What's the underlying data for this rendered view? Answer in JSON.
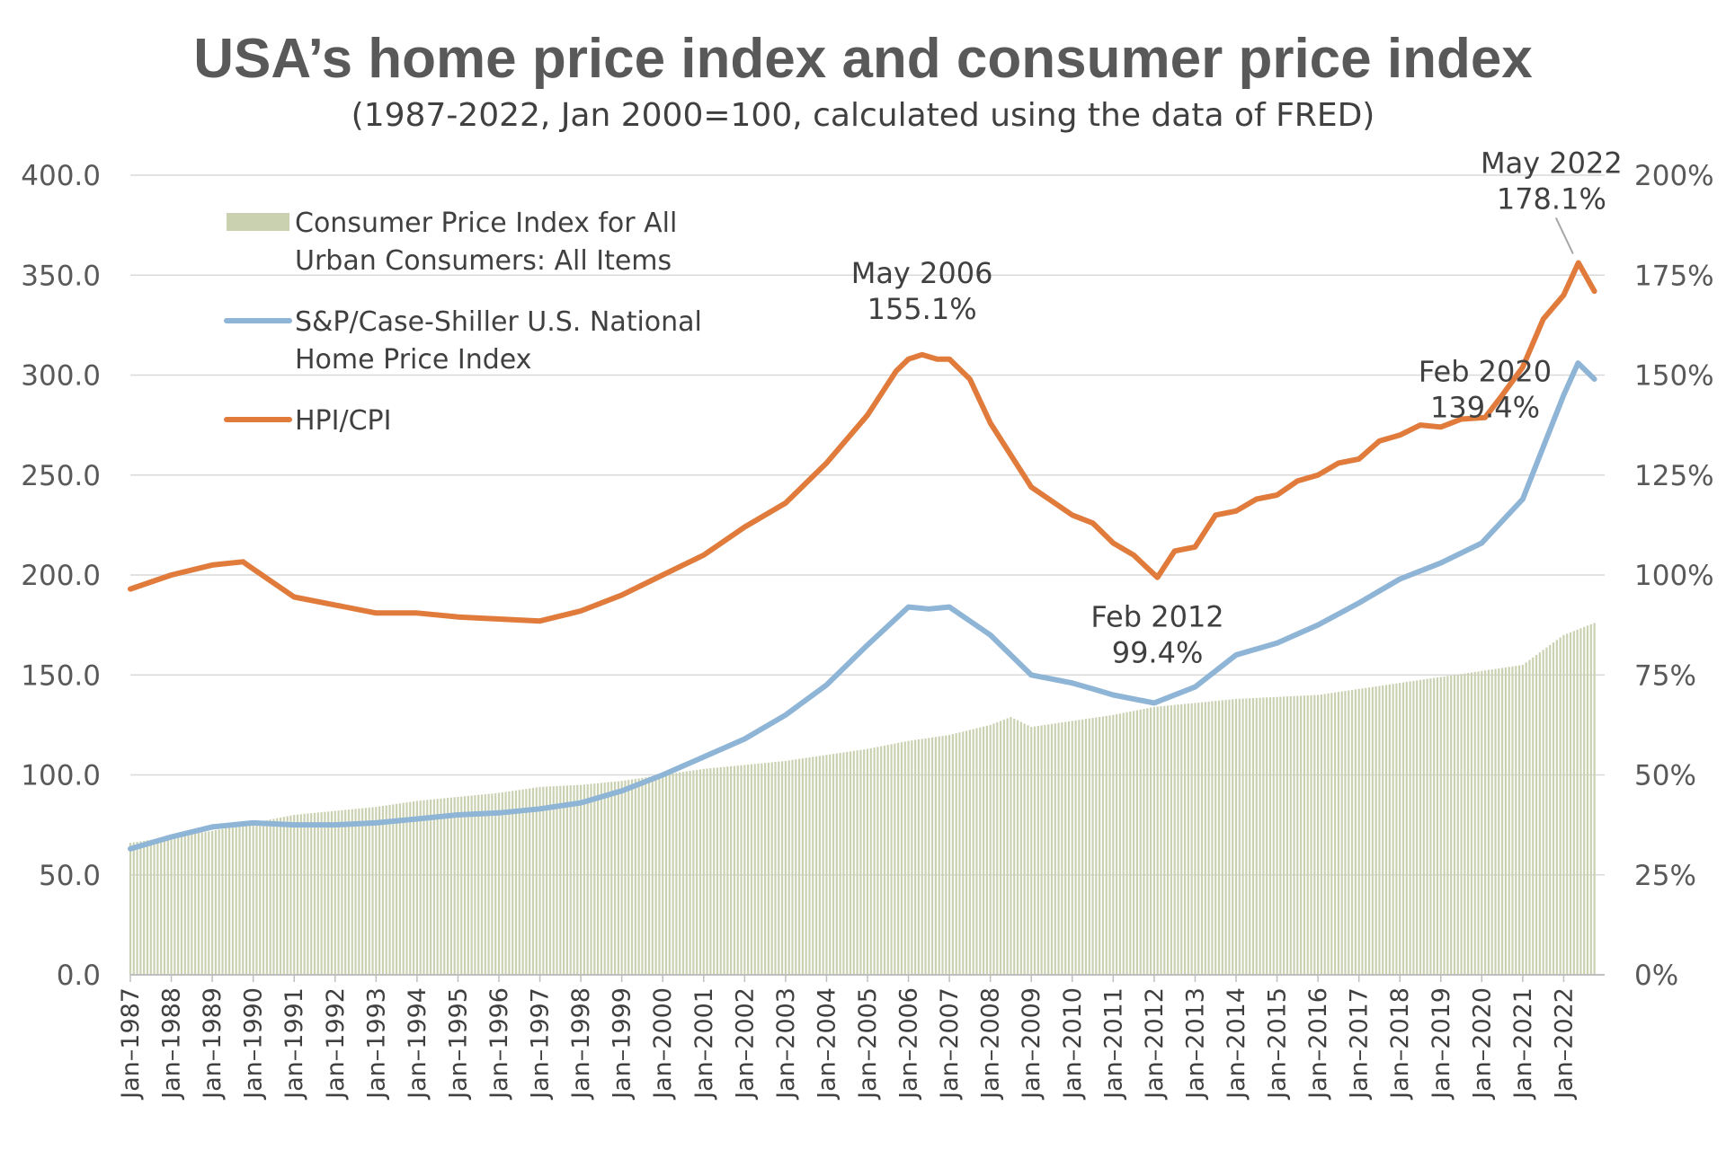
{
  "title": "USA’s home price index and consumer price index",
  "subtitle": "(1987-2022, Jan 2000=100, calculated using the data of FRED)",
  "chart_data": {
    "type": "bar",
    "title": "USA’s home price index and consumer price index",
    "subtitle": "(1987-2022, Jan 2000=100, calculated using the data of FRED)",
    "xlabel": "",
    "ylabel": "",
    "y_left": {
      "range": [
        0,
        400
      ],
      "ticks": [
        "0.0",
        "50.0",
        "100.0",
        "150.0",
        "200.0",
        "250.0",
        "300.0",
        "350.0",
        "400.0"
      ]
    },
    "y_right": {
      "range": [
        0,
        200
      ],
      "ticks": [
        "0%",
        "25%",
        "50%",
        "75%",
        "100%",
        "125%",
        "150%",
        "175%",
        "200%"
      ]
    },
    "x_ticks": [
      "Jan–1987",
      "Jan–1988",
      "Jan–1989",
      "Jan–1990",
      "Jan–1991",
      "Jan–1992",
      "Jan–1993",
      "Jan–1994",
      "Jan–1995",
      "Jan–1996",
      "Jan–1997",
      "Jan–1998",
      "Jan–1999",
      "Jan–2000",
      "Jan–2001",
      "Jan–2002",
      "Jan–2003",
      "Jan–2004",
      "Jan–2005",
      "Jan–2006",
      "Jan–2007",
      "Jan–2008",
      "Jan–2009",
      "Jan–2010",
      "Jan–2011",
      "Jan–2012",
      "Jan–2013",
      "Jan–2014",
      "Jan–2015",
      "Jan–2016",
      "Jan–2017",
      "Jan–2018",
      "Jan–2019",
      "Jan–2020",
      "Jan–2021",
      "Jan–2022"
    ],
    "x_range": [
      1987.0,
      2023.0
    ],
    "grid": true,
    "legend_position": "top-left",
    "series": [
      {
        "name": "Consumer Price Index for All Urban Consumers: All Items",
        "type": "bar",
        "axis": "left",
        "color": "#c9d1b1",
        "points": [
          [
            1987.0,
            66
          ],
          [
            1988.0,
            69
          ],
          [
            1989.0,
            72
          ],
          [
            1990.0,
            76
          ],
          [
            1991.0,
            80
          ],
          [
            1992.0,
            82
          ],
          [
            1993.0,
            84
          ],
          [
            1994.0,
            87
          ],
          [
            1995.0,
            89
          ],
          [
            1996.0,
            91
          ],
          [
            1997.0,
            94
          ],
          [
            1998.0,
            95
          ],
          [
            1999.0,
            97
          ],
          [
            2000.0,
            100
          ],
          [
            2001.0,
            103
          ],
          [
            2002.0,
            105
          ],
          [
            2003.0,
            107
          ],
          [
            2004.0,
            110
          ],
          [
            2005.0,
            113
          ],
          [
            2006.0,
            117
          ],
          [
            2007.0,
            120
          ],
          [
            2008.0,
            125
          ],
          [
            2008.5,
            129
          ],
          [
            2009.0,
            124
          ],
          [
            2010.0,
            127
          ],
          [
            2011.0,
            130
          ],
          [
            2012.0,
            134
          ],
          [
            2013.0,
            136
          ],
          [
            2014.0,
            138
          ],
          [
            2015.0,
            139
          ],
          [
            2016.0,
            140
          ],
          [
            2017.0,
            143
          ],
          [
            2018.0,
            146
          ],
          [
            2019.0,
            149
          ],
          [
            2020.0,
            152
          ],
          [
            2021.0,
            155
          ],
          [
            2022.0,
            170
          ],
          [
            2022.75,
            176
          ]
        ]
      },
      {
        "name": "S&P/Case-Shiller U.S. National Home Price Index",
        "type": "line",
        "axis": "left",
        "color": "#8eb4d6",
        "points": [
          [
            1987.0,
            63
          ],
          [
            1988.0,
            69
          ],
          [
            1989.0,
            74
          ],
          [
            1990.0,
            76
          ],
          [
            1991.0,
            75
          ],
          [
            1992.0,
            75
          ],
          [
            1993.0,
            76
          ],
          [
            1994.0,
            78
          ],
          [
            1995.0,
            80
          ],
          [
            1996.0,
            81
          ],
          [
            1997.0,
            83
          ],
          [
            1998.0,
            86
          ],
          [
            1999.0,
            92
          ],
          [
            2000.0,
            100
          ],
          [
            2001.0,
            109
          ],
          [
            2002.0,
            118
          ],
          [
            2003.0,
            130
          ],
          [
            2004.0,
            145
          ],
          [
            2005.0,
            165
          ],
          [
            2006.0,
            184
          ],
          [
            2006.5,
            183
          ],
          [
            2007.0,
            184
          ],
          [
            2007.5,
            177
          ],
          [
            2008.0,
            170
          ],
          [
            2009.0,
            150
          ],
          [
            2010.0,
            146
          ],
          [
            2010.5,
            143
          ],
          [
            2011.0,
            140
          ],
          [
            2012.0,
            136
          ],
          [
            2013.0,
            144
          ],
          [
            2014.0,
            160
          ],
          [
            2015.0,
            166
          ],
          [
            2016.0,
            175
          ],
          [
            2017.0,
            186
          ],
          [
            2018.0,
            198
          ],
          [
            2019.0,
            206
          ],
          [
            2020.0,
            216
          ],
          [
            2021.0,
            238
          ],
          [
            2022.0,
            290
          ],
          [
            2022.35,
            306
          ],
          [
            2022.75,
            298
          ]
        ]
      },
      {
        "name": "HPI/CPI",
        "type": "line",
        "axis": "right",
        "color": "#e07b3c",
        "points": [
          [
            1987.0,
            96.5
          ],
          [
            1988.0,
            100
          ],
          [
            1989.0,
            102.5
          ],
          [
            1989.75,
            103.3
          ],
          [
            1990.0,
            101.5
          ],
          [
            1991.0,
            94.5
          ],
          [
            1992.0,
            92.5
          ],
          [
            1993.0,
            90.5
          ],
          [
            1994.0,
            90.5
          ],
          [
            1995.0,
            89.5
          ],
          [
            1996.0,
            89
          ],
          [
            1997.0,
            88.5
          ],
          [
            1998.0,
            91
          ],
          [
            1999.0,
            95
          ],
          [
            2000.0,
            100
          ],
          [
            2001.0,
            105
          ],
          [
            2002.0,
            112
          ],
          [
            2003.0,
            118
          ],
          [
            2004.0,
            128
          ],
          [
            2005.0,
            140
          ],
          [
            2005.7,
            151
          ],
          [
            2006.0,
            154
          ],
          [
            2006.33,
            155.1
          ],
          [
            2006.7,
            154
          ],
          [
            2007.0,
            154
          ],
          [
            2007.5,
            149
          ],
          [
            2008.0,
            138
          ],
          [
            2009.0,
            122
          ],
          [
            2009.5,
            118.5
          ],
          [
            2010.0,
            115
          ],
          [
            2010.5,
            113
          ],
          [
            2011.0,
            108
          ],
          [
            2011.5,
            105
          ],
          [
            2012.08,
            99.4
          ],
          [
            2012.5,
            106
          ],
          [
            2013.0,
            107
          ],
          [
            2013.5,
            115
          ],
          [
            2014.0,
            116
          ],
          [
            2014.5,
            119
          ],
          [
            2015.0,
            120
          ],
          [
            2015.5,
            123.5
          ],
          [
            2016.0,
            125
          ],
          [
            2016.5,
            128
          ],
          [
            2017.0,
            129
          ],
          [
            2017.5,
            133.5
          ],
          [
            2018.0,
            135
          ],
          [
            2018.5,
            137.5
          ],
          [
            2019.0,
            137
          ],
          [
            2019.5,
            139
          ],
          [
            2020.08,
            139.4
          ],
          [
            2020.5,
            145
          ],
          [
            2021.0,
            152
          ],
          [
            2021.5,
            164
          ],
          [
            2022.0,
            170
          ],
          [
            2022.36,
            178.1
          ],
          [
            2022.75,
            171
          ]
        ]
      }
    ],
    "annotations": [
      {
        "label": "May 2006",
        "value": "155.1%",
        "x": 2006.33,
        "y": 155.1
      },
      {
        "label": "Feb 2012",
        "value": "99.4%",
        "x": 2012.08,
        "y": 99.4
      },
      {
        "label": "Feb 2020",
        "value": "139.4%",
        "x": 2020.08,
        "y": 139.4
      },
      {
        "label": "May 2022",
        "value": "178.1%",
        "x": 2022.36,
        "y": 178.1
      }
    ]
  }
}
